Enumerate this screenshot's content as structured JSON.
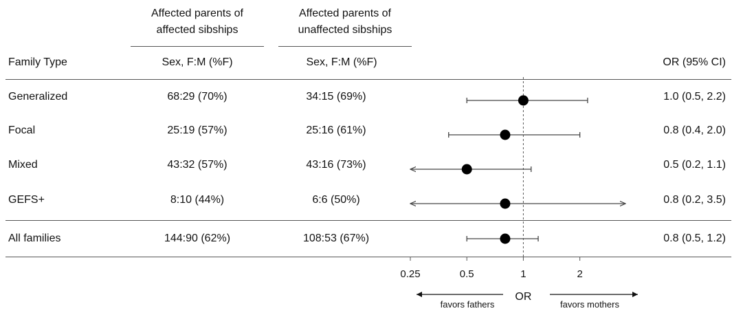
{
  "headers": {
    "group_affected": [
      "Affected parents of",
      "affected sibships"
    ],
    "group_unaffected": [
      "Affected parents of",
      "unaffected sibships"
    ],
    "family_type": "Family Type",
    "sex_col_1": "Sex, F:M (%F)",
    "sex_col_2": "Sex, F:M (%F)",
    "or_col": "OR (95% CI)"
  },
  "rows": [
    {
      "family": "Generalized",
      "affected": "68:29 (70%)",
      "unaffected": "34:15 (69%)",
      "or_text": "1.0 (0.5, 2.2)"
    },
    {
      "family": "Focal",
      "affected": "25:19 (57%)",
      "unaffected": "25:16 (61%)",
      "or_text": "0.8 (0.4, 2.0)"
    },
    {
      "family": "Mixed",
      "affected": "43:32 (57%)",
      "unaffected": "43:16 (73%)",
      "or_text": "0.5 (0.2, 1.1)"
    },
    {
      "family": "GEFS+",
      "affected": "8:10 (44%)",
      "unaffected": "6:6 (50%)",
      "or_text": "0.8 (0.2, 3.5)"
    }
  ],
  "total_row": {
    "family": "All families",
    "affected": "144:90 (62%)",
    "unaffected": "108:53 (67%)",
    "or_text": "0.8 (0.5, 1.2)"
  },
  "chart_data": {
    "type": "forest",
    "scale": "log",
    "xlim": [
      0.25,
      3.5
    ],
    "reference_line": 1,
    "xlabel": "OR",
    "direction_labels": {
      "left": "favors fathers",
      "right": "favors mothers"
    },
    "ticks": [
      {
        "value": 0.25,
        "label": "0.25"
      },
      {
        "value": 0.5,
        "label": "0.5"
      },
      {
        "value": 1,
        "label": "1"
      },
      {
        "value": 2,
        "label": "2"
      }
    ],
    "points": [
      {
        "label": "Generalized",
        "or": 1.0,
        "lo": 0.5,
        "hi": 2.2,
        "lo_arrow": false,
        "hi_arrow": false
      },
      {
        "label": "Focal",
        "or": 0.8,
        "lo": 0.4,
        "hi": 2.0,
        "lo_arrow": false,
        "hi_arrow": false
      },
      {
        "label": "Mixed",
        "or": 0.5,
        "lo": 0.2,
        "hi": 1.1,
        "lo_arrow": true,
        "hi_arrow": false
      },
      {
        "label": "GEFS+",
        "or": 0.8,
        "lo": 0.2,
        "hi": 3.5,
        "lo_arrow": true,
        "hi_arrow": true
      },
      {
        "label": "All families",
        "or": 0.8,
        "lo": 0.5,
        "hi": 1.2,
        "lo_arrow": false,
        "hi_arrow": false
      }
    ]
  }
}
